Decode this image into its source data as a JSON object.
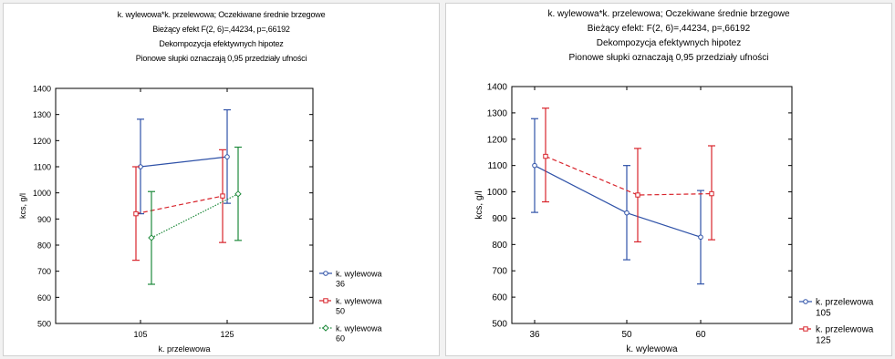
{
  "chart_data": [
    {
      "type": "line",
      "title": "k. wylewowa*k. przelewowa; Oczekiwane średnie brzegowe",
      "subtitle_lines": [
        "Bieżący efekt F(2, 6)=,44234, p=,66192",
        "Dekompozycja efektywnych hipotez",
        "Pionowe słupki oznaczają 0,95 przedziały ufności"
      ],
      "xlabel": "k. przelewowa",
      "ylabel": "kcs, g/l",
      "categories": [
        "105",
        "125"
      ],
      "ylim": [
        500,
        1400
      ],
      "yticks": [
        "500",
        "600",
        "700",
        "800",
        "900",
        "1000",
        "1100",
        "1200",
        "1300",
        "1400"
      ],
      "grid": false,
      "legend_position": "right",
      "series": [
        {
          "name": "k. wylewowa",
          "name_value": "36",
          "color": "#2f52a8",
          "line_style": "solid",
          "marker": "circle",
          "values": [
            1100,
            1138
          ],
          "ci_low": [
            920,
            960
          ],
          "ci_high": [
            1282,
            1318
          ]
        },
        {
          "name": "k. wylewowa",
          "name_value": "50",
          "color": "#d8242c",
          "line_style": "dashed",
          "marker": "square",
          "values": [
            920,
            988
          ],
          "ci_low": [
            742,
            810
          ],
          "ci_high": [
            1100,
            1165
          ]
        },
        {
          "name": "k. wylewowa",
          "name_value": "60",
          "color": "#1f8a3c",
          "line_style": "dotted",
          "marker": "diamond",
          "values": [
            828,
            996
          ],
          "ci_low": [
            650,
            818
          ],
          "ci_high": [
            1005,
            1175
          ]
        }
      ]
    },
    {
      "type": "line",
      "title": "k. wylewowa*k. przelewowa; Oczekiwane średnie brzegowe",
      "subtitle_lines": [
        "Bieżący efekt: F(2, 6)=,44234, p=,66192",
        "Dekompozycja efektywnych hipotez",
        "Pionowe słupki oznaczają 0,95 przedziały ufności"
      ],
      "xlabel": "k. wylewowa",
      "ylabel": "kcs, g/l",
      "categories": [
        "36",
        "50",
        "60"
      ],
      "ylim": [
        500,
        1400
      ],
      "yticks": [
        "500",
        "600",
        "700",
        "800",
        "900",
        "1000",
        "1100",
        "1200",
        "1300",
        "1400"
      ],
      "grid": false,
      "legend_position": "bottom-right",
      "series": [
        {
          "name": "k. przelewowa",
          "name_value": "105",
          "color": "#2f52a8",
          "line_style": "solid",
          "marker": "circle",
          "values": [
            1100,
            920,
            828
          ],
          "ci_low": [
            922,
            742,
            650
          ],
          "ci_high": [
            1278,
            1100,
            1005
          ]
        },
        {
          "name": "k. przelewowa",
          "name_value": "125",
          "color": "#d8242c",
          "line_style": "dashed",
          "marker": "square",
          "values": [
            1135,
            988,
            993
          ],
          "ci_low": [
            962,
            810,
            818
          ],
          "ci_high": [
            1318,
            1165,
            1175
          ]
        }
      ]
    }
  ]
}
